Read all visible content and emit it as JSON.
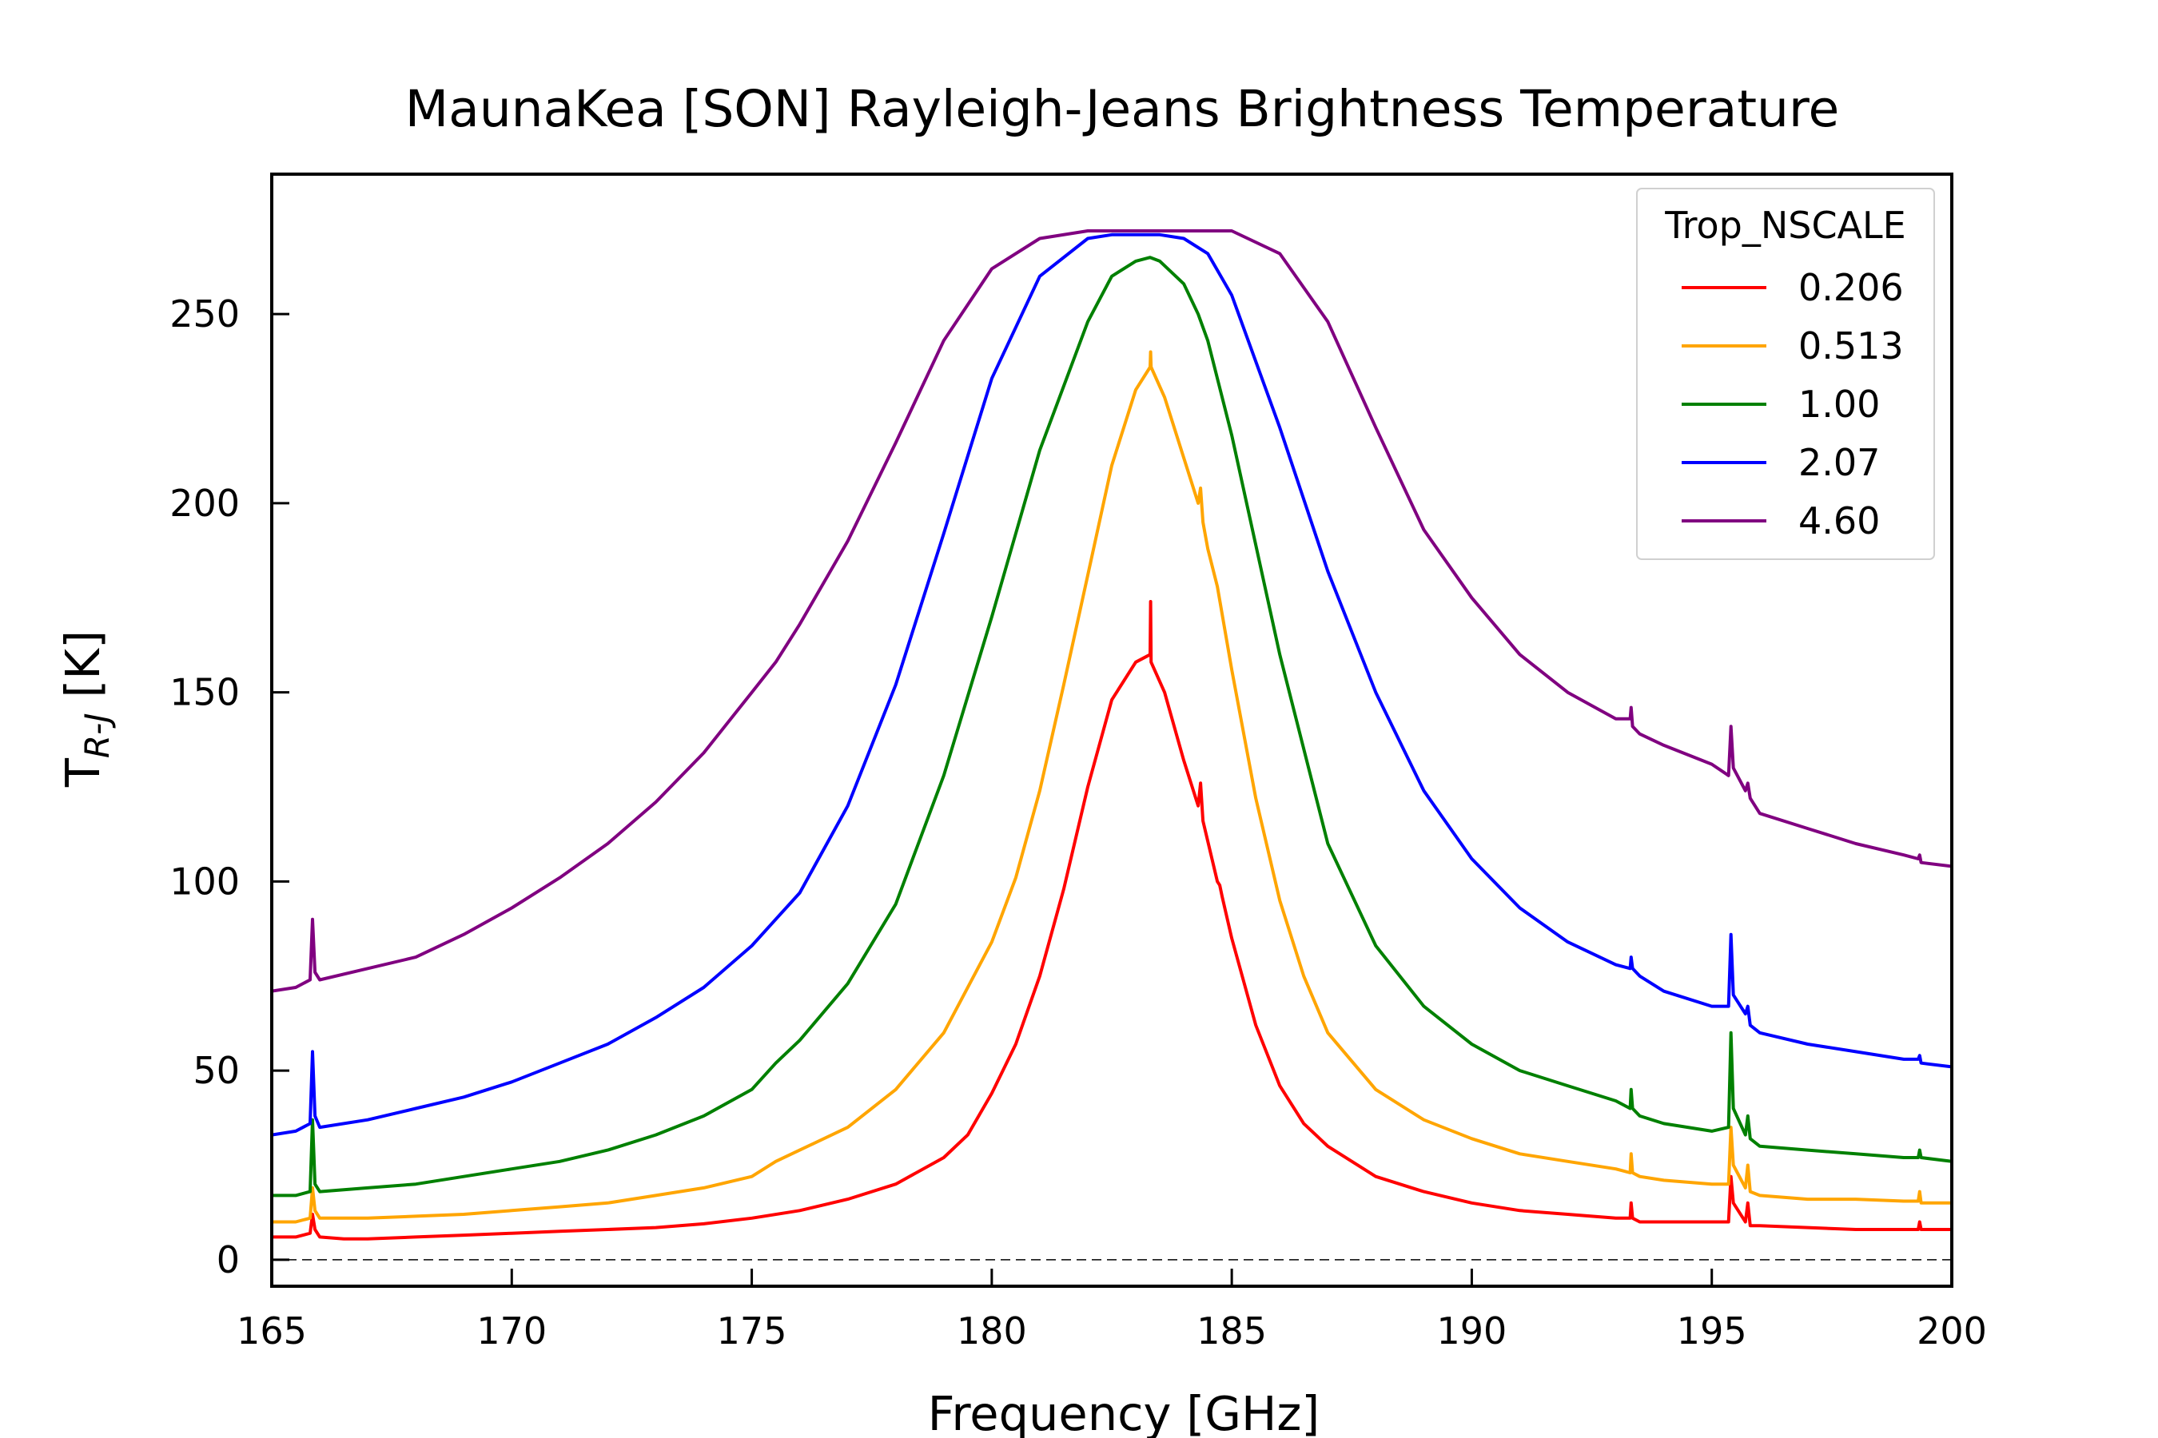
{
  "chart_data": {
    "type": "line",
    "title": "MaunaKea [SON] Rayleigh-Jeans Brightness Temperature",
    "xlabel": "Frequency [GHz]",
    "ylabel_main": "T",
    "ylabel_sub": "R-J",
    "ylabel_unit": " [K]",
    "xlim": [
      165,
      200
    ],
    "ylim": [
      -7,
      287
    ],
    "xticks": [
      165,
      170,
      175,
      180,
      185,
      190,
      195,
      200
    ],
    "yticks": [
      0,
      50,
      100,
      150,
      200,
      250
    ],
    "zero_line": 0,
    "grid": false,
    "legend": {
      "title": "Trop_NSCALE",
      "placement": "top-right"
    },
    "series": [
      {
        "name": "0.206",
        "color": "#ff0000",
        "x": [
          165,
          165.5,
          165.8,
          165.85,
          165.9,
          166,
          166.5,
          167,
          168,
          169,
          170,
          171,
          172,
          173,
          174,
          175,
          176,
          177,
          178,
          179,
          179.5,
          180,
          180.5,
          181,
          181.5,
          182,
          182.5,
          183,
          183.3,
          183.31,
          183.32,
          183.6,
          184,
          184.3,
          184.35,
          184.4,
          184.7,
          184.75,
          184.8,
          185,
          185.5,
          186,
          186.5,
          187,
          188,
          189,
          190,
          191,
          192,
          193,
          193.3,
          193.32,
          193.35,
          193.5,
          194,
          195,
          195.35,
          195.4,
          195.45,
          195.7,
          195.75,
          195.8,
          196,
          197,
          198,
          199,
          199.3,
          199.33,
          199.36,
          200
        ],
        "y": [
          6,
          6,
          7,
          12,
          8,
          6,
          5.5,
          5.5,
          6,
          6.5,
          7,
          7.5,
          8,
          8.5,
          9.5,
          11,
          13,
          16,
          20,
          27,
          33,
          44,
          57,
          75,
          98,
          125,
          148,
          158,
          160,
          174,
          158,
          150,
          132,
          120,
          126,
          116,
          100,
          99,
          96,
          85,
          62,
          46,
          36,
          30,
          22,
          18,
          15,
          13,
          12,
          11,
          11,
          15,
          11,
          10,
          10,
          10,
          10,
          22,
          15,
          10,
          15,
          9,
          9,
          8.5,
          8,
          8,
          8,
          10,
          8,
          8
        ]
      },
      {
        "name": "0.513",
        "color": "#ffa500",
        "x": [
          165,
          165.5,
          165.8,
          165.85,
          165.9,
          166,
          167,
          168,
          169,
          170,
          171,
          172,
          173,
          174,
          175,
          175.5,
          176,
          177,
          178,
          179,
          180,
          180.5,
          181,
          181.5,
          182,
          182.5,
          183,
          183.3,
          183.31,
          183.32,
          183.6,
          184,
          184.3,
          184.35,
          184.4,
          184.5,
          184.7,
          185,
          185.5,
          186,
          186.5,
          187,
          188,
          189,
          190,
          191,
          192,
          193,
          193.3,
          193.32,
          193.35,
          193.5,
          194,
          195,
          195.35,
          195.4,
          195.45,
          195.7,
          195.75,
          195.8,
          196,
          197,
          198,
          199,
          199.3,
          199.33,
          199.36,
          200
        ],
        "y": [
          10,
          10,
          11,
          19,
          13,
          11,
          11,
          11.5,
          12,
          13,
          14,
          15,
          17,
          19,
          22,
          26,
          29,
          35,
          45,
          60,
          84,
          101,
          124,
          152,
          181,
          210,
          230,
          236,
          240,
          236,
          228,
          212,
          200,
          204,
          195,
          188,
          178,
          156,
          122,
          95,
          75,
          60,
          45,
          37,
          32,
          28,
          26,
          24,
          23,
          28,
          23,
          22,
          21,
          20,
          20,
          35,
          25,
          19,
          25,
          18,
          17,
          16,
          16,
          15.5,
          15.5,
          18,
          15,
          15
        ]
      },
      {
        "name": "1.00",
        "color": "#008000",
        "x": [
          165,
          165.5,
          165.8,
          165.85,
          165.9,
          166,
          167,
          168,
          169,
          170,
          171,
          172,
          173,
          174,
          175,
          175.5,
          176,
          177,
          178,
          179,
          180,
          181,
          182,
          182.5,
          183,
          183.3,
          183.5,
          184,
          184.3,
          184.5,
          185,
          186,
          187,
          188,
          189,
          190,
          191,
          192,
          193,
          193.3,
          193.32,
          193.35,
          193.5,
          194,
          195,
          195.35,
          195.4,
          195.45,
          195.7,
          195.75,
          195.8,
          196,
          197,
          198,
          199,
          199.3,
          199.33,
          199.36,
          200
        ],
        "y": [
          17,
          17,
          18,
          37,
          20,
          18,
          19,
          20,
          22,
          24,
          26,
          29,
          33,
          38,
          45,
          52,
          58,
          73,
          94,
          128,
          170,
          214,
          248,
          260,
          264,
          265,
          264,
          258,
          250,
          243,
          218,
          160,
          110,
          83,
          67,
          57,
          50,
          46,
          42,
          40,
          45,
          40,
          38,
          36,
          34,
          35,
          60,
          40,
          33,
          38,
          32,
          30,
          29,
          28,
          27,
          27,
          29,
          27,
          26
        ]
      },
      {
        "name": "2.07",
        "color": "#0000ff",
        "x": [
          165,
          165.5,
          165.8,
          165.85,
          165.9,
          166,
          167,
          168,
          169,
          170,
          171,
          172,
          173,
          174,
          175,
          175.5,
          176,
          177,
          178,
          179,
          180,
          181,
          182,
          182.5,
          183,
          183.5,
          184,
          184.5,
          185,
          186,
          187,
          188,
          189,
          190,
          191,
          192,
          193,
          193.3,
          193.32,
          193.35,
          193.5,
          194,
          195,
          195.35,
          195.4,
          195.45,
          195.7,
          195.75,
          195.8,
          196,
          197,
          198,
          199,
          199.3,
          199.33,
          199.36,
          200
        ],
        "y": [
          33,
          34,
          36,
          55,
          38,
          35,
          37,
          40,
          43,
          47,
          52,
          57,
          64,
          72,
          83,
          90,
          97,
          120,
          152,
          192,
          233,
          260,
          270,
          271,
          271,
          271,
          270,
          266,
          255,
          220,
          182,
          150,
          124,
          106,
          93,
          84,
          78,
          77,
          80,
          77,
          75,
          71,
          67,
          67,
          86,
          70,
          65,
          67,
          62,
          60,
          57,
          55,
          53,
          53,
          54,
          52,
          51
        ]
      },
      {
        "name": "4.60",
        "color": "#800080",
        "x": [
          165,
          165.5,
          165.8,
          165.85,
          165.9,
          166,
          167,
          168,
          169,
          170,
          171,
          172,
          173,
          174,
          175,
          175.5,
          176,
          177,
          178,
          179,
          180,
          181,
          182,
          183,
          184,
          185,
          186,
          187,
          188,
          189,
          190,
          191,
          192,
          193,
          193.3,
          193.32,
          193.35,
          193.5,
          194,
          195,
          195.35,
          195.4,
          195.45,
          195.7,
          195.75,
          195.8,
          196,
          197,
          198,
          199,
          199.3,
          199.33,
          199.36,
          200
        ],
        "y": [
          71,
          72,
          74,
          90,
          76,
          74,
          77,
          80,
          86,
          93,
          101,
          110,
          121,
          134,
          150,
          158,
          168,
          190,
          216,
          243,
          262,
          270,
          272,
          272,
          272,
          272,
          266,
          248,
          220,
          193,
          175,
          160,
          150,
          143,
          143,
          146,
          141,
          139,
          136,
          131,
          128,
          141,
          130,
          124,
          126,
          122,
          118,
          114,
          110,
          107,
          106,
          107,
          105,
          104
        ]
      }
    ]
  }
}
